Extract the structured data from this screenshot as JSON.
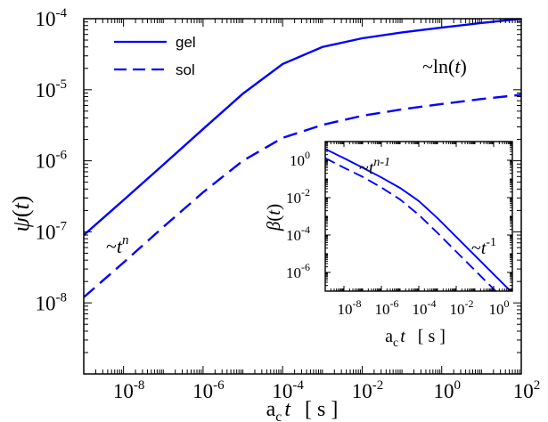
{
  "colors": {
    "series": "#0000ff",
    "axes": "#000000",
    "background": "#ffffff"
  },
  "chart_data": [
    {
      "type": "line",
      "scale": {
        "x": "log",
        "y": "log"
      },
      "xlim": [
        1e-09,
        100
      ],
      "ylim": [
        1e-09,
        0.0001
      ],
      "grid": false,
      "legend_placement": "top-left",
      "x_ticks": [
        {
          "value": 1e-08,
          "base": "10",
          "exp": "-8"
        },
        {
          "value": 1e-06,
          "base": "10",
          "exp": "-6"
        },
        {
          "value": 0.0001,
          "base": "10",
          "exp": "-4"
        },
        {
          "value": 0.01,
          "base": "10",
          "exp": "-2"
        },
        {
          "value": 1,
          "base": "10",
          "exp": "0"
        },
        {
          "value": 100,
          "base": "10",
          "exp": "2"
        }
      ],
      "y_ticks": [
        {
          "value": 1e-08,
          "base": "10",
          "exp": "-8"
        },
        {
          "value": 1e-07,
          "base": "10",
          "exp": "-7"
        },
        {
          "value": 1e-06,
          "base": "10",
          "exp": "-6"
        },
        {
          "value": 1e-05,
          "base": "10",
          "exp": "-5"
        },
        {
          "value": 0.0001,
          "base": "10",
          "exp": "-4"
        }
      ],
      "xlabel": {
        "a": "a",
        "sub": "c",
        "t": "t",
        "unit": "[ s ]"
      },
      "ylabel": {
        "psi": "ψ",
        "open": "(",
        "t": "t",
        "close": ")"
      },
      "annotations": {
        "power_law": {
          "prefix": "~",
          "base": "t",
          "exp": "n"
        },
        "log_law": {
          "text": "~ln(",
          "t": "t",
          "close": ")"
        }
      },
      "series": [
        {
          "name": "gel",
          "style": "solid",
          "x": [
            1e-09,
            1e-08,
            1e-07,
            1e-06,
            1e-05,
            0.0001,
            0.001,
            0.01,
            0.1,
            1,
            10,
            100
          ],
          "y": [
            9e-08,
            2.8e-07,
            8.8e-07,
            2.8e-06,
            8.8e-06,
            2.3e-05,
            4e-05,
            5.3e-05,
            6.4e-05,
            7.5e-05,
            8.7e-05,
            0.0001
          ]
        },
        {
          "name": "sol",
          "style": "dashed",
          "x": [
            1e-09,
            1e-08,
            1e-07,
            1e-06,
            1e-05,
            0.0001,
            0.001,
            0.01,
            0.1,
            1,
            10,
            100
          ],
          "y": [
            1.2e-08,
            3.7e-08,
            1.17e-07,
            3.6e-07,
            1e-06,
            2.1e-06,
            3.2e-06,
            4.3e-06,
            5.3e-06,
            6.3e-06,
            7.4e-06,
            8.5e-06
          ]
        }
      ]
    },
    {
      "type": "line",
      "scale": {
        "x": "log",
        "y": "log"
      },
      "xlim": [
        1e-09,
        10
      ],
      "ylim": [
        1e-07,
        10
      ],
      "grid": false,
      "x_ticks": [
        {
          "value": 1e-08,
          "base": "10",
          "exp": "-8"
        },
        {
          "value": 1e-06,
          "base": "10",
          "exp": "-6"
        },
        {
          "value": 0.0001,
          "base": "10",
          "exp": "-4"
        },
        {
          "value": 0.01,
          "base": "10",
          "exp": "-2"
        },
        {
          "value": 1,
          "base": "10",
          "exp": "0"
        }
      ],
      "y_ticks": [
        {
          "value": 1e-06,
          "base": "10",
          "exp": "-6"
        },
        {
          "value": 0.0001,
          "base": "10",
          "exp": "-4"
        },
        {
          "value": 0.01,
          "base": "10",
          "exp": "-2"
        },
        {
          "value": 1,
          "base": "10",
          "exp": "0"
        }
      ],
      "xlabel": {
        "a": "a",
        "sub": "c",
        "t": "t",
        "unit": "[ s ]"
      },
      "ylabel": {
        "beta": "β",
        "open": "(",
        "t": "t",
        "close": ")"
      },
      "annotations": {
        "power_law_short": {
          "prefix": "~",
          "base": "t",
          "exp": "n-1"
        },
        "power_law_long": {
          "prefix": "~",
          "base": "t",
          "exp": "-1"
        }
      },
      "series": [
        {
          "style": "solid",
          "x": [
            1e-09,
            1e-08,
            1e-07,
            1e-06,
            1e-05,
            0.0001,
            0.001,
            0.01,
            0.1,
            1,
            10
          ],
          "y": [
            4,
            1.3,
            0.4,
            0.12,
            0.033,
            0.0066,
            0.0008,
            8e-05,
            8e-06,
            8e-07,
            8e-08
          ]
        },
        {
          "style": "dashed",
          "x": [
            1e-09,
            1e-08,
            1e-07,
            1e-06,
            1e-05,
            0.0001,
            0.001,
            0.01,
            0.1,
            1,
            10
          ],
          "y": [
            1.3,
            0.4,
            0.13,
            0.035,
            0.008,
            0.0012,
            0.00013,
            1.3e-05,
            1.3e-06,
            1.3e-07,
            1.3e-08
          ]
        }
      ]
    }
  ]
}
